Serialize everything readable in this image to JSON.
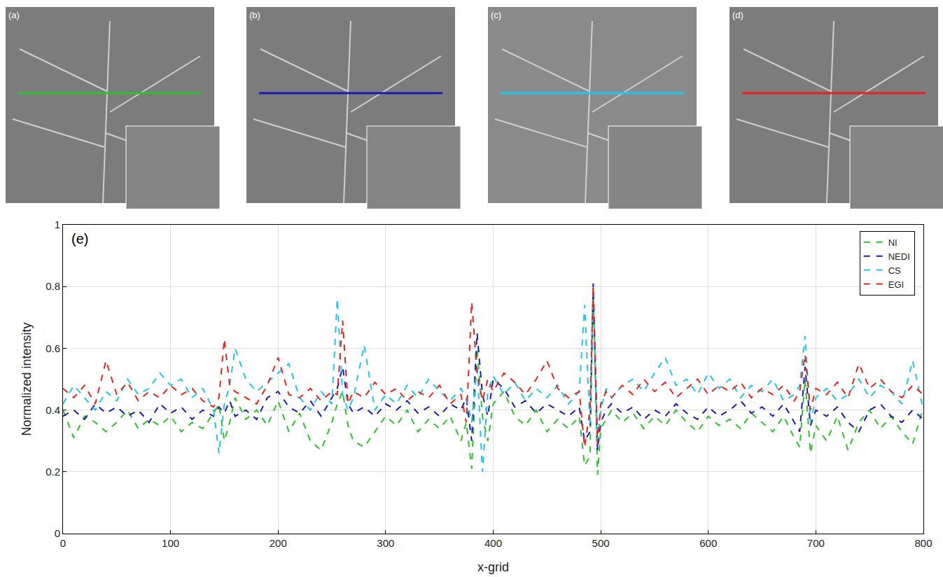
{
  "image_panels": [
    "(a)",
    "(b)",
    "(c)",
    "(d)"
  ],
  "chart_data": {
    "type": "line",
    "annotations": [
      "(e)"
    ],
    "x_label": "x-grid",
    "y_label": "Normalized intensity",
    "xlim": [
      0,
      800
    ],
    "xticks": [
      0,
      100,
      200,
      300,
      400,
      500,
      600,
      700,
      800
    ],
    "ylim": [
      0,
      1
    ],
    "yticks": [
      0,
      0.2,
      0.4,
      0.6,
      0.8,
      1
    ],
    "grid": true,
    "legend": "top-right",
    "line_style": "dashed",
    "x": [
      0,
      10,
      20,
      30,
      40,
      50,
      60,
      70,
      80,
      90,
      100,
      110,
      120,
      130,
      140,
      145,
      150,
      155,
      160,
      170,
      180,
      190,
      200,
      210,
      220,
      230,
      240,
      250,
      255,
      260,
      265,
      270,
      280,
      290,
      300,
      310,
      320,
      330,
      340,
      350,
      360,
      370,
      375,
      380,
      385,
      390,
      395,
      400,
      410,
      420,
      430,
      440,
      450,
      460,
      470,
      480,
      485,
      490,
      493,
      497,
      500,
      505,
      510,
      520,
      530,
      540,
      550,
      560,
      570,
      580,
      590,
      600,
      610,
      620,
      630,
      640,
      650,
      660,
      670,
      680,
      685,
      690,
      695,
      700,
      710,
      720,
      730,
      740,
      750,
      760,
      770,
      780,
      790,
      800
    ],
    "series": [
      {
        "name": "NI",
        "color": "#2fbf2f",
        "values": [
          0.4,
          0.31,
          0.38,
          0.36,
          0.33,
          0.36,
          0.4,
          0.34,
          0.37,
          0.35,
          0.38,
          0.33,
          0.36,
          0.34,
          0.39,
          0.42,
          0.3,
          0.36,
          0.44,
          0.37,
          0.4,
          0.35,
          0.43,
          0.33,
          0.39,
          0.3,
          0.27,
          0.36,
          0.42,
          0.46,
          0.35,
          0.3,
          0.28,
          0.33,
          0.38,
          0.35,
          0.4,
          0.33,
          0.37,
          0.34,
          0.38,
          0.3,
          0.36,
          0.21,
          0.6,
          0.38,
          0.3,
          0.42,
          0.46,
          0.38,
          0.35,
          0.4,
          0.33,
          0.37,
          0.34,
          0.38,
          0.22,
          0.25,
          0.8,
          0.19,
          0.34,
          0.37,
          0.4,
          0.36,
          0.39,
          0.34,
          0.38,
          0.35,
          0.4,
          0.36,
          0.33,
          0.38,
          0.35,
          0.37,
          0.34,
          0.39,
          0.36,
          0.33,
          0.38,
          0.31,
          0.28,
          0.5,
          0.26,
          0.35,
          0.3,
          0.38,
          0.27,
          0.36,
          0.4,
          0.34,
          0.38,
          0.33,
          0.29,
          0.41
        ]
      },
      {
        "name": "NEDI",
        "color": "#1a1ab0",
        "values": [
          0.38,
          0.4,
          0.37,
          0.42,
          0.39,
          0.41,
          0.38,
          0.4,
          0.36,
          0.42,
          0.39,
          0.41,
          0.37,
          0.4,
          0.38,
          0.41,
          0.39,
          0.43,
          0.38,
          0.4,
          0.37,
          0.44,
          0.46,
          0.41,
          0.39,
          0.43,
          0.38,
          0.44,
          0.47,
          0.54,
          0.42,
          0.39,
          0.41,
          0.38,
          0.42,
          0.4,
          0.43,
          0.39,
          0.41,
          0.38,
          0.42,
          0.4,
          0.44,
          0.3,
          0.65,
          0.45,
          0.38,
          0.5,
          0.47,
          0.41,
          0.43,
          0.39,
          0.42,
          0.4,
          0.38,
          0.41,
          0.3,
          0.33,
          0.81,
          0.27,
          0.36,
          0.4,
          0.42,
          0.39,
          0.41,
          0.37,
          0.4,
          0.38,
          0.42,
          0.39,
          0.37,
          0.41,
          0.38,
          0.4,
          0.43,
          0.39,
          0.41,
          0.38,
          0.42,
          0.36,
          0.33,
          0.54,
          0.35,
          0.4,
          0.38,
          0.41,
          0.36,
          0.33,
          0.4,
          0.42,
          0.38,
          0.36,
          0.4,
          0.37
        ]
      },
      {
        "name": "CS",
        "color": "#1ec6ea",
        "values": [
          0.42,
          0.48,
          0.44,
          0.4,
          0.46,
          0.43,
          0.5,
          0.45,
          0.47,
          0.52,
          0.48,
          0.5,
          0.44,
          0.47,
          0.4,
          0.26,
          0.42,
          0.48,
          0.6,
          0.5,
          0.46,
          0.49,
          0.52,
          0.55,
          0.44,
          0.4,
          0.46,
          0.42,
          0.76,
          0.45,
          0.4,
          0.44,
          0.61,
          0.4,
          0.45,
          0.42,
          0.48,
          0.44,
          0.5,
          0.46,
          0.43,
          0.47,
          0.44,
          0.36,
          0.55,
          0.2,
          0.46,
          0.51,
          0.45,
          0.49,
          0.43,
          0.47,
          0.44,
          0.48,
          0.42,
          0.46,
          0.74,
          0.35,
          0.78,
          0.3,
          0.4,
          0.47,
          0.44,
          0.48,
          0.5,
          0.46,
          0.52,
          0.57,
          0.48,
          0.5,
          0.45,
          0.52,
          0.47,
          0.5,
          0.44,
          0.48,
          0.46,
          0.5,
          0.43,
          0.45,
          0.48,
          0.64,
          0.36,
          0.44,
          0.47,
          0.43,
          0.45,
          0.5,
          0.44,
          0.48,
          0.46,
          0.42,
          0.56,
          0.4
        ]
      },
      {
        "name": "EGI",
        "color": "#e8231f",
        "values": [
          0.47,
          0.44,
          0.48,
          0.42,
          0.56,
          0.45,
          0.49,
          0.43,
          0.46,
          0.44,
          0.48,
          0.45,
          0.47,
          0.43,
          0.41,
          0.44,
          0.63,
          0.48,
          0.46,
          0.44,
          0.42,
          0.48,
          0.57,
          0.45,
          0.44,
          0.47,
          0.43,
          0.46,
          0.45,
          0.69,
          0.42,
          0.46,
          0.44,
          0.49,
          0.45,
          0.47,
          0.43,
          0.46,
          0.44,
          0.48,
          0.42,
          0.45,
          0.36,
          0.75,
          0.52,
          0.43,
          0.5,
          0.46,
          0.52,
          0.49,
          0.45,
          0.5,
          0.56,
          0.47,
          0.44,
          0.46,
          0.28,
          0.4,
          0.8,
          0.29,
          0.42,
          0.46,
          0.44,
          0.48,
          0.45,
          0.5,
          0.46,
          0.49,
          0.44,
          0.47,
          0.5,
          0.45,
          0.48,
          0.46,
          0.49,
          0.44,
          0.47,
          0.45,
          0.48,
          0.43,
          0.46,
          0.58,
          0.4,
          0.47,
          0.45,
          0.49,
          0.44,
          0.55,
          0.47,
          0.5,
          0.46,
          0.44,
          0.48,
          0.45
        ]
      }
    ]
  }
}
